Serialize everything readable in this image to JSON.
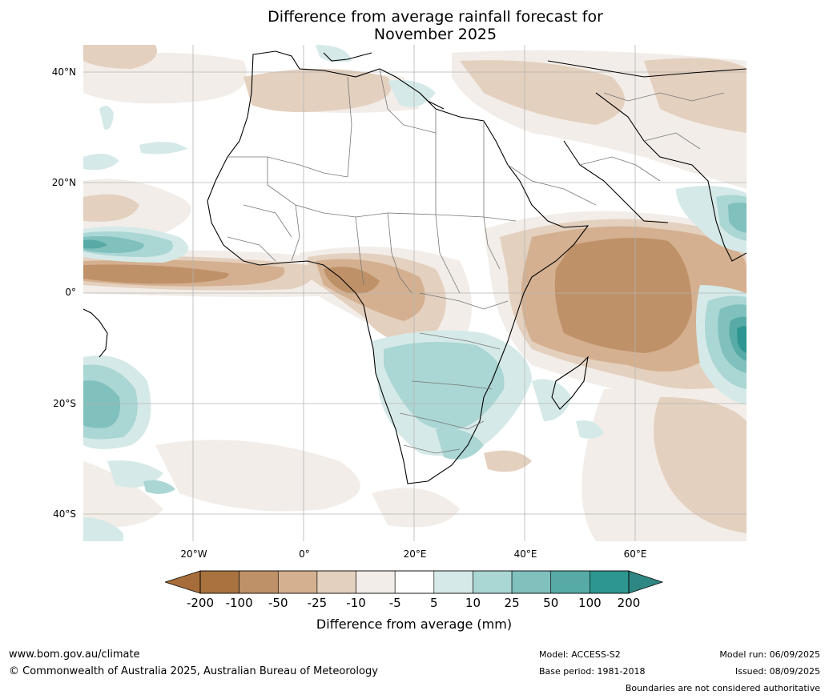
{
  "title_line1": "Difference from average rainfall forecast for",
  "title_line2": "November 2025",
  "lat_labels": [
    "40°N",
    "20°N",
    "0°",
    "20°S",
    "40°S"
  ],
  "lon_labels": [
    "20°W",
    "0°",
    "20°E",
    "40°E",
    "60°E"
  ],
  "colorbar": {
    "ticks": [
      "-200",
      "-100",
      "-50",
      "-25",
      "-10",
      "-5",
      "5",
      "10",
      "25",
      "50",
      "100",
      "200"
    ],
    "colors": [
      "#a8733f",
      "#bf9168",
      "#d4b090",
      "#e4d0be",
      "#f2ede8",
      "#ffffff",
      "#d5eae8",
      "#aad6d3",
      "#80c0bd",
      "#57aaa6",
      "#2e9690",
      "#247c77"
    ],
    "low_color": "#a66d3a",
    "high_color": "#2f8783",
    "label": "Difference from average (mm)"
  },
  "footer": {
    "url": "www.bom.gov.au/climate",
    "copyright": "© Commonwealth of Australia 2025, Australian Bureau of Meteorology",
    "model": "Model: ACCESS-S2",
    "base_period": "Base period: 1981-2018",
    "model_run": "Model run: 06/09/2025",
    "issued": "Issued: 08/09/2025",
    "disclaimer": "Boundaries are not considered authoritative"
  }
}
